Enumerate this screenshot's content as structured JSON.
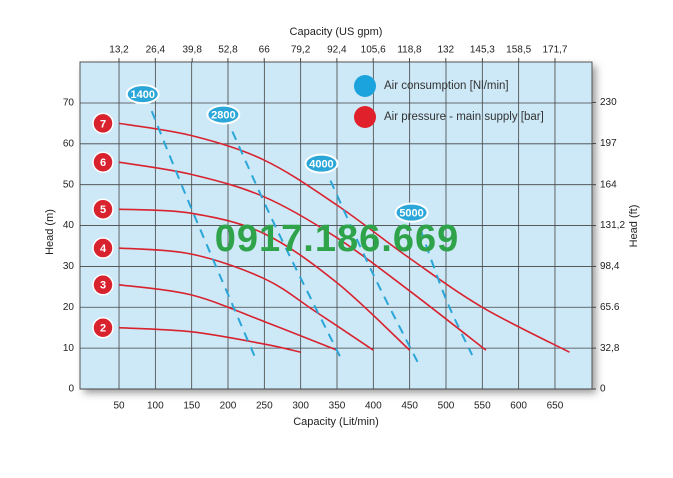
{
  "chart_data": {
    "type": "line",
    "xlabel": "Capacity  (Lit/min)",
    "x2label": "Capacity  (US gpm)",
    "ylabel": "Head  (m)",
    "y2label": "Head  (ft)",
    "annotation": "0917.186.669",
    "xlim": [
      0,
      700
    ],
    "xticks": [
      50,
      100,
      150,
      200,
      250,
      300,
      350,
      400,
      450,
      500,
      550,
      600,
      650
    ],
    "x2lim": [
      0,
      184.9
    ],
    "x2ticks": [
      {
        "value": 13.2,
        "label": "13,2"
      },
      {
        "value": 26.4,
        "label": "26,4"
      },
      {
        "value": 39.8,
        "label": "39,8"
      },
      {
        "value": 52.8,
        "label": "52,8"
      },
      66,
      {
        "value": 79.2,
        "label": "79,2"
      },
      {
        "value": 92.4,
        "label": "92,4"
      },
      {
        "value": 105.6,
        "label": "105,6"
      },
      {
        "value": 118.8,
        "label": "118,8"
      },
      132,
      {
        "value": 145.3,
        "label": "145,3"
      },
      {
        "value": 158.5,
        "label": "158,5"
      },
      {
        "value": 171.7,
        "label": "171,7"
      }
    ],
    "ylim": [
      0,
      80
    ],
    "yticks": [
      0,
      10,
      20,
      30,
      40,
      50,
      60,
      70
    ],
    "y2lim": [
      0,
      262.4
    ],
    "y2ticks": [
      0,
      {
        "value": 32.8,
        "label": "32,8"
      },
      65.6,
      {
        "value": 98.4,
        "label": "98,4"
      },
      {
        "value": 131.2,
        "label": "131,2"
      },
      164,
      197,
      230
    ],
    "grid": true,
    "legend": [
      {
        "label": "Air consumption  [Nl/min]",
        "color": "#1aa3dc"
      },
      {
        "label": "Air pressure  - main supply  [bar]",
        "color": "#e0202a"
      }
    ],
    "series": [
      {
        "name": "7",
        "color": "#d8232f",
        "dashed": false,
        "x": [
          50,
          150,
          250,
          350,
          450,
          550,
          670
        ],
        "values": [
          65,
          62,
          56,
          45,
          32,
          20,
          9
        ]
      },
      {
        "name": "6",
        "color": "#d8232f",
        "dashed": false,
        "x": [
          50,
          150,
          250,
          350,
          450,
          555
        ],
        "values": [
          55.5,
          52.5,
          47,
          37,
          24,
          9.5
        ]
      },
      {
        "name": "5",
        "color": "#d8232f",
        "dashed": false,
        "x": [
          50,
          150,
          250,
          350,
          450
        ],
        "values": [
          44,
          43,
          38,
          26,
          9.5
        ]
      },
      {
        "name": "4",
        "color": "#d8232f",
        "dashed": false,
        "x": [
          50,
          150,
          250,
          320,
          400
        ],
        "values": [
          34.5,
          33,
          27,
          19,
          9.5
        ]
      },
      {
        "name": "3",
        "color": "#d8232f",
        "dashed": false,
        "x": [
          50,
          150,
          250,
          350
        ],
        "values": [
          25.5,
          23,
          16.5,
          9.5
        ]
      },
      {
        "name": "2",
        "color": "#d8232f",
        "dashed": false,
        "x": [
          50,
          150,
          250,
          300
        ],
        "values": [
          15,
          14,
          11,
          9
        ]
      },
      {
        "name": "1400",
        "color": "#2aa6d8",
        "dashed": true,
        "x": [
          95,
          150,
          240
        ],
        "values": [
          68,
          44,
          6.6
        ]
      },
      {
        "name": "2800",
        "color": "#2aa6d8",
        "dashed": true,
        "x": [
          206,
          270,
          358
        ],
        "values": [
          63,
          38,
          6.6
        ]
      },
      {
        "name": "4000",
        "color": "#2aa6d8",
        "dashed": true,
        "x": [
          341,
          400,
          461
        ],
        "values": [
          51,
          28,
          6.6
        ]
      },
      {
        "name": "5000",
        "color": "#2aa6d8",
        "dashed": true,
        "x": [
          465,
          500,
          536
        ],
        "values": [
          39,
          22,
          8.3
        ]
      }
    ]
  }
}
